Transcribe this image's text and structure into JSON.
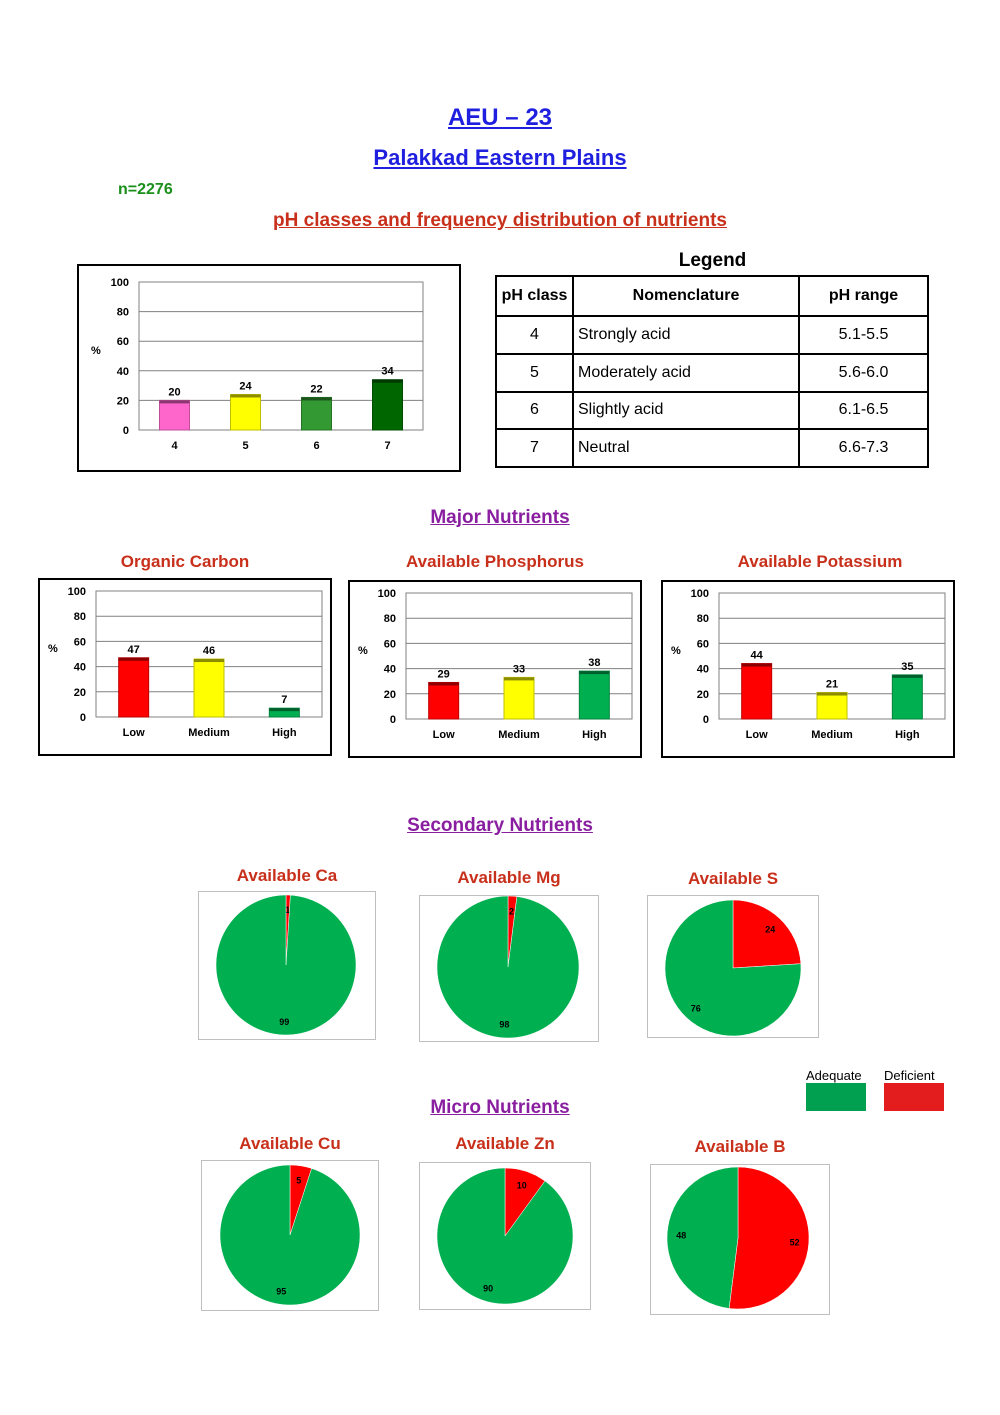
{
  "header": {
    "title": "AEU – 23",
    "subtitle": "Palakkad Eastern Plains",
    "sample_count": "n=2276"
  },
  "sections": {
    "ph": "pH classes and frequency distribution of nutrients",
    "major": "Major Nutrients",
    "secondary": "Secondary Nutrients",
    "micro": "Micro Nutrients"
  },
  "legend_table": {
    "title": "Legend",
    "headers": [
      "pH class",
      "Nomenclature",
      "pH range"
    ],
    "rows": [
      {
        "cls": "4",
        "name": "Strongly acid",
        "range": "5.1-5.5"
      },
      {
        "cls": "5",
        "name": "Moderately acid",
        "range": "5.6-6.0"
      },
      {
        "cls": "6",
        "name": "Slightly acid",
        "range": "6.1-6.5"
      },
      {
        "cls": "7",
        "name": "Neutral",
        "range": "6.6-7.3"
      }
    ]
  },
  "pie_key": {
    "items": [
      {
        "label": "Adequate",
        "color": "#00b050"
      },
      {
        "label": "Deficient",
        "color": "#ff0000"
      }
    ]
  },
  "chart_data": [
    {
      "id": "ph-chart",
      "type": "bar",
      "title": "",
      "ylabel": "%",
      "ylim": [
        0,
        100
      ],
      "yticks": [
        0,
        20,
        40,
        60,
        80,
        100
      ],
      "grid": true,
      "categories": [
        "4",
        "5",
        "6",
        "7"
      ],
      "values": [
        20,
        24,
        22,
        34
      ],
      "colors": [
        "#ff66cc",
        "#ffff00",
        "#339933",
        "#006600"
      ]
    },
    {
      "id": "organic-carbon-chart",
      "type": "bar",
      "title": "Organic Carbon",
      "ylabel": "%",
      "ylim": [
        0,
        100
      ],
      "yticks": [
        0,
        20,
        40,
        60,
        80,
        100
      ],
      "grid": true,
      "categories": [
        "Low",
        "Medium",
        "High"
      ],
      "values": [
        47,
        46,
        7
      ],
      "colors": [
        "#ff0000",
        "#ffff00",
        "#00b050"
      ]
    },
    {
      "id": "phosphorus-chart",
      "type": "bar",
      "title": "Available Phosphorus",
      "ylabel": "%",
      "ylim": [
        0,
        100
      ],
      "yticks": [
        0,
        20,
        40,
        60,
        80,
        100
      ],
      "grid": true,
      "categories": [
        "Low",
        "Medium",
        "High"
      ],
      "values": [
        29,
        33,
        38
      ],
      "colors": [
        "#ff0000",
        "#ffff00",
        "#00b050"
      ]
    },
    {
      "id": "potassium-chart",
      "type": "bar",
      "title": "Available Potassium",
      "ylabel": "%",
      "ylim": [
        0,
        100
      ],
      "yticks": [
        0,
        20,
        40,
        60,
        80,
        100
      ],
      "grid": true,
      "categories": [
        "Low",
        "Medium",
        "High"
      ],
      "values": [
        44,
        21,
        35
      ],
      "colors": [
        "#ff0000",
        "#ffff00",
        "#00b050"
      ]
    },
    {
      "id": "ca-pie",
      "type": "pie",
      "title": "Available Ca",
      "labels": [
        "Deficient",
        "Adequate"
      ],
      "values": [
        1,
        99
      ],
      "colors": [
        "#ff0000",
        "#00b050"
      ]
    },
    {
      "id": "mg-pie",
      "type": "pie",
      "title": "Available Mg",
      "labels": [
        "Deficient",
        "Adequate"
      ],
      "values": [
        2,
        98
      ],
      "colors": [
        "#ff0000",
        "#00b050"
      ]
    },
    {
      "id": "s-pie",
      "type": "pie",
      "title": "Available S",
      "labels": [
        "Deficient",
        "Adequate"
      ],
      "values": [
        24,
        76
      ],
      "colors": [
        "#ff0000",
        "#00b050"
      ]
    },
    {
      "id": "cu-pie",
      "type": "pie",
      "title": "Available Cu",
      "labels": [
        "Deficient",
        "Adequate"
      ],
      "values": [
        5,
        95
      ],
      "colors": [
        "#ff0000",
        "#00b050"
      ]
    },
    {
      "id": "zn-pie",
      "type": "pie",
      "title": "Available Zn",
      "labels": [
        "Deficient",
        "Adequate"
      ],
      "values": [
        10,
        90
      ],
      "colors": [
        "#ff0000",
        "#00b050"
      ]
    },
    {
      "id": "b-pie",
      "type": "pie",
      "title": "Available B",
      "labels": [
        "Deficient",
        "Adequate"
      ],
      "values": [
        52,
        48
      ],
      "colors": [
        "#ff0000",
        "#00b050"
      ]
    }
  ]
}
